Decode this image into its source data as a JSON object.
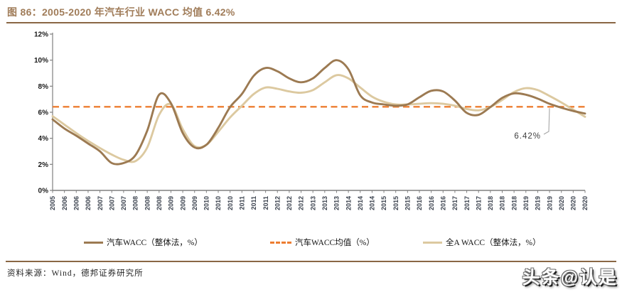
{
  "figure": {
    "title": "图 86：2005-2020 年汽车行业 WACC 均值 6.42%",
    "source": "资料来源：Wind，德邦证券研究所",
    "watermark": "头条@认是"
  },
  "colors": {
    "title_text": "#A07C59",
    "rule": "#8A6744",
    "axis": "#808080",
    "y_tick_label": "#1a1a1a",
    "x_tick_label": "#3d4450",
    "annotation_text": "#404040",
    "annotation_leader": "#a6a6a6"
  },
  "chart_data": {
    "type": "line",
    "title": "2005-2020 年汽车行业 WACC 均值 6.42%",
    "ylim": [
      0,
      12
    ],
    "y_ticks": [
      "0%",
      "2%",
      "4%",
      "6%",
      "8%",
      "10%",
      "12%"
    ],
    "grid": false,
    "legend_position": "bottom",
    "x_labels": [
      "2005",
      "2006",
      "2006",
      "2006",
      "2007",
      "2007",
      "2007",
      "2008",
      "2008",
      "2008",
      "2009",
      "2009",
      "2009",
      "2010",
      "2010",
      "2010",
      "2011",
      "2011",
      "2011",
      "2012",
      "2012",
      "2012",
      "2013",
      "2013",
      "2013",
      "2014",
      "2014",
      "2014",
      "2015",
      "2015",
      "2015",
      "2016",
      "2016",
      "2016",
      "2017",
      "2017",
      "2017",
      "2018",
      "2018",
      "2018",
      "2019",
      "2019",
      "2019",
      "2020",
      "2020",
      "2020"
    ],
    "annotation": {
      "text": "6.42%",
      "value": 6.42
    },
    "series": [
      {
        "name": "汽车WACC（整体法，%）",
        "type": "line",
        "color": "#9C7A52",
        "values": [
          5.45,
          4.75,
          4.2,
          3.6,
          3.0,
          2.1,
          2.1,
          2.7,
          4.6,
          7.35,
          6.7,
          4.4,
          3.3,
          3.5,
          4.8,
          6.4,
          7.4,
          8.8,
          9.4,
          9.15,
          8.6,
          8.3,
          8.6,
          9.4,
          10.0,
          9.3,
          7.3,
          6.75,
          6.6,
          6.5,
          6.6,
          7.15,
          7.65,
          7.6,
          6.9,
          5.95,
          5.8,
          6.4,
          7.1,
          7.45,
          7.35,
          7.05,
          6.65,
          6.35,
          6.1,
          5.9
        ]
      },
      {
        "name": "汽车WACC均值（%）",
        "type": "dashed-constant",
        "color": "#ED7D31",
        "value": 6.42
      },
      {
        "name": "全A WACC（整体法，%）",
        "type": "line",
        "color": "#DCC9A0",
        "values": [
          5.7,
          5.05,
          4.4,
          3.8,
          3.25,
          2.75,
          2.35,
          2.25,
          3.3,
          5.8,
          6.6,
          4.7,
          3.4,
          3.5,
          4.5,
          5.6,
          6.5,
          7.4,
          7.9,
          7.8,
          7.6,
          7.5,
          7.7,
          8.3,
          8.85,
          8.6,
          7.9,
          7.2,
          6.8,
          6.6,
          6.6,
          6.65,
          6.7,
          6.65,
          6.5,
          6.25,
          6.15,
          6.4,
          6.95,
          7.55,
          7.85,
          7.7,
          7.25,
          6.75,
          6.2,
          5.65
        ]
      }
    ]
  }
}
